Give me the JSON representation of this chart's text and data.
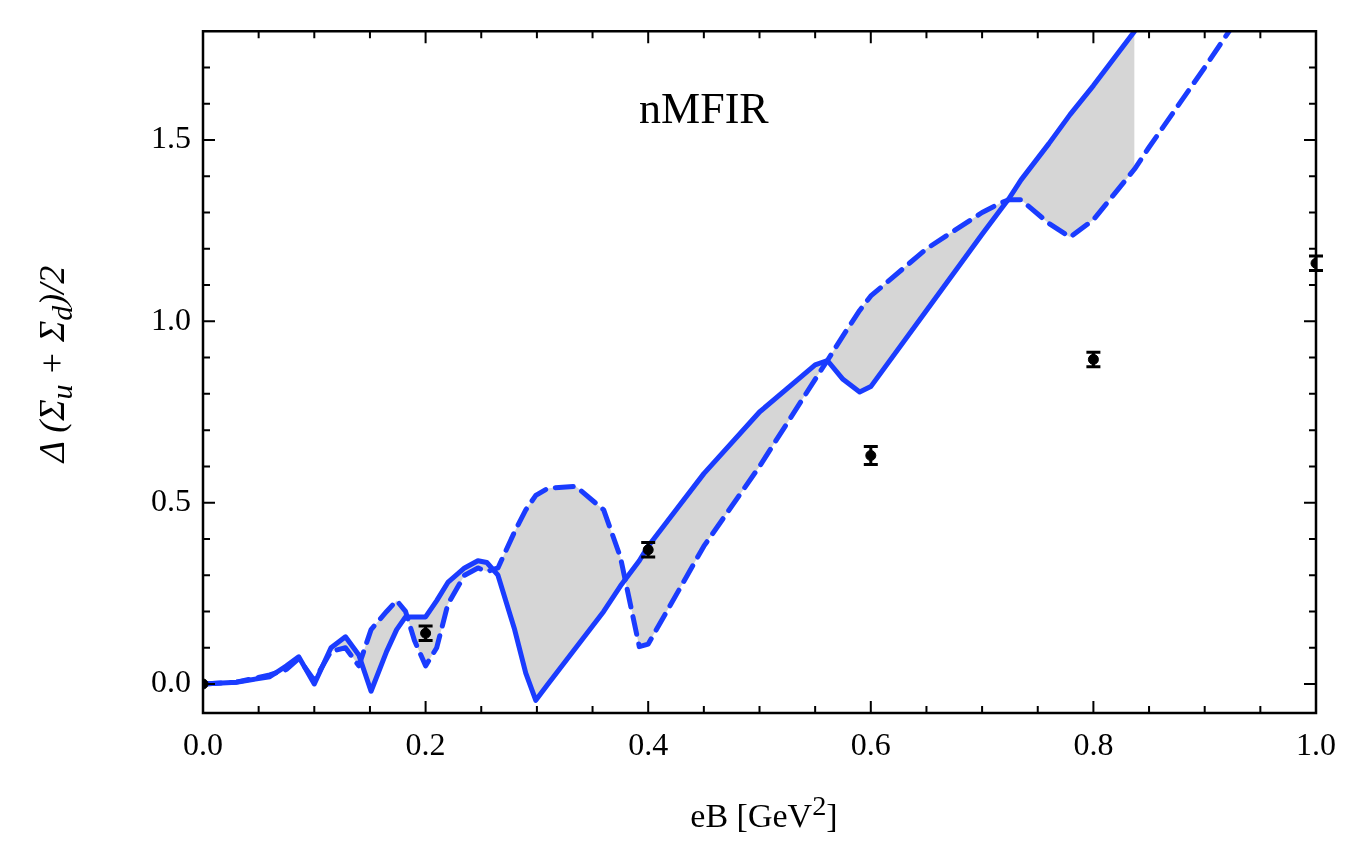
{
  "chart_data": {
    "type": "line",
    "title": "nMFIR",
    "xlabel": "eB  [GeV$^{2}$]",
    "ylabel": "Δ (Σ$_{u}$ + Σ$_{d}$)/2",
    "x": [
      0,
      0.03,
      0.06,
      0.075,
      0.086,
      0.1,
      0.115,
      0.128,
      0.14,
      0.151,
      0.165,
      0.174,
      0.182,
      0.19,
      0.2,
      0.21,
      0.22,
      0.235,
      0.247,
      0.255,
      0.265,
      0.28,
      0.29,
      0.299,
      0.31,
      0.335,
      0.36,
      0.375,
      0.392,
      0.4,
      0.45,
      0.5,
      0.55,
      0.561,
      0.575,
      0.59,
      0.6,
      0.65,
      0.7,
      0.717,
      0.724,
      0.735,
      0.76,
      0.779,
      0.8,
      0.837,
      0.85,
      0.9,
      0.922
    ],
    "series": [
      {
        "color": "#1a3cff",
        "line_style": "solid",
        "values": [
          0,
          0.005,
          0.02,
          0.05,
          0.075,
          0.0,
          0.1,
          0.13,
          0.08,
          -0.02,
          0.09,
          0.15,
          0.185,
          0.185,
          0.185,
          0.23,
          0.28,
          0.32,
          0.34,
          0.335,
          0.3,
          0.15,
          0.03,
          -0.045,
          0.0,
          0.1,
          0.2,
          0.27,
          0.34,
          0.38,
          0.58,
          0.75,
          0.88,
          0.892,
          0.84,
          0.805,
          0.82,
          1.03,
          1.24,
          1.31,
          1.338,
          1.39,
          1.49,
          1.57,
          1.65,
          1.8,
          null,
          null,
          null
        ]
      },
      {
        "color": "#1a3cff",
        "line_style": "dashed",
        "values": [
          0,
          0.005,
          0.025,
          0.04,
          0.07,
          0.01,
          0.09,
          0.1,
          0.05,
          0.15,
          0.2,
          0.23,
          0.2,
          0.12,
          0.05,
          0.1,
          0.22,
          0.3,
          0.32,
          0.31,
          0.32,
          0.42,
          0.48,
          0.52,
          0.54,
          0.545,
          0.48,
          0.35,
          0.103,
          0.11,
          0.38,
          0.6,
          0.84,
          0.892,
          0.96,
          1.03,
          1.07,
          1.2,
          1.3,
          1.327,
          1.335,
          1.335,
          1.27,
          1.232,
          1.28,
          1.42,
          1.48,
          1.7,
          1.8
        ]
      },
      {
        "type": "scatter",
        "color": "#000000",
        "marker": "circle",
        "x": [
          0,
          0.2,
          0.4,
          0.6,
          0.8,
          1.0
        ],
        "values": [
          0,
          0.14,
          0.37,
          0.63,
          0.895,
          1.16
        ],
        "errors": [
          null,
          0.02,
          0.02,
          0.025,
          0.02,
          0.02
        ]
      }
    ],
    "xlim": [
      0,
      1.0
    ],
    "ylim": [
      -0.08,
      1.8
    ],
    "xticks": [
      {
        "value": 0,
        "label": "0.0"
      },
      {
        "value": 0.05,
        "label": null
      },
      {
        "value": 0.1,
        "label": null
      },
      {
        "value": 0.15,
        "label": null
      },
      {
        "value": 0.2,
        "label": "0.2"
      },
      {
        "value": 0.25,
        "label": null
      },
      {
        "value": 0.3,
        "label": null
      },
      {
        "value": 0.35,
        "label": null
      },
      {
        "value": 0.4,
        "label": "0.4"
      },
      {
        "value": 0.45,
        "label": null
      },
      {
        "value": 0.5,
        "label": null
      },
      {
        "value": 0.55,
        "label": null
      },
      {
        "value": 0.6,
        "label": "0.6"
      },
      {
        "value": 0.65,
        "label": null
      },
      {
        "value": 0.7,
        "label": null
      },
      {
        "value": 0.75,
        "label": null
      },
      {
        "value": 0.8,
        "label": "0.8"
      },
      {
        "value": 0.85,
        "label": null
      },
      {
        "value": 0.9,
        "label": null
      },
      {
        "value": 0.95,
        "label": null
      },
      {
        "value": 1.0,
        "label": "1.0"
      }
    ],
    "yticks": [
      {
        "value": 0,
        "label": "0.0"
      },
      {
        "value": 0.1,
        "label": null
      },
      {
        "value": 0.2,
        "label": null
      },
      {
        "value": 0.3,
        "label": null
      },
      {
        "value": 0.4,
        "label": null
      },
      {
        "value": 0.5,
        "label": "0.5"
      },
      {
        "value": 0.6,
        "label": null
      },
      {
        "value": 0.7,
        "label": null
      },
      {
        "value": 0.8,
        "label": null
      },
      {
        "value": 0.9,
        "label": null
      },
      {
        "value": 1.0,
        "label": "1.0"
      },
      {
        "value": 1.1,
        "label": null
      },
      {
        "value": 1.2,
        "label": null
      },
      {
        "value": 1.3,
        "label": null
      },
      {
        "value": 1.4,
        "label": null
      },
      {
        "value": 1.5,
        "label": "1.5"
      },
      {
        "value": 1.6,
        "label": null
      },
      {
        "value": 1.7,
        "label": null
      }
    ],
    "grid": false,
    "legend": false
  }
}
